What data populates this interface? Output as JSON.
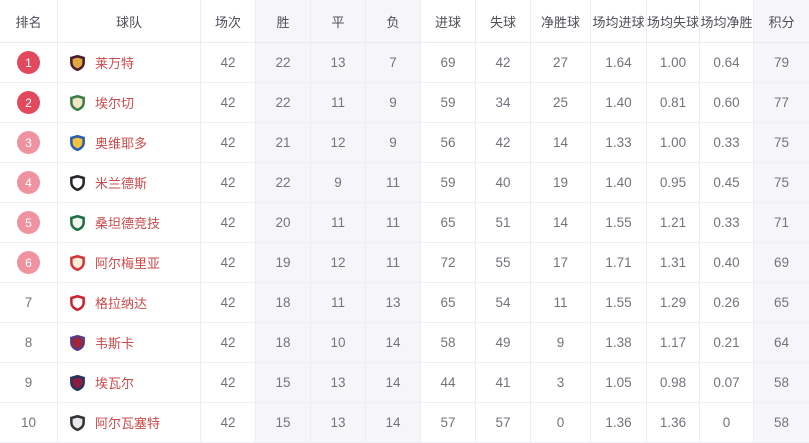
{
  "colors": {
    "rank_badge_top2": "#e2495c",
    "rank_badge_3_to_6": "#ef93a1",
    "team_name_link": "#c94b4b",
    "shaded_column_bg": "#f6f6fa",
    "header_text": "#4d4e57",
    "stat_text": "#73737d"
  },
  "table": {
    "columns": [
      {
        "key": "rank",
        "label": "排名",
        "shaded": false
      },
      {
        "key": "team",
        "label": "球队",
        "shaded": false
      },
      {
        "key": "played",
        "label": "场次",
        "shaded": false
      },
      {
        "key": "win",
        "label": "胜",
        "shaded": true
      },
      {
        "key": "draw",
        "label": "平",
        "shaded": true
      },
      {
        "key": "loss",
        "label": "负",
        "shaded": true
      },
      {
        "key": "goals_for",
        "label": "进球",
        "shaded": false
      },
      {
        "key": "goals_against",
        "label": "失球",
        "shaded": false
      },
      {
        "key": "goal_diff",
        "label": "净胜球",
        "shaded": false
      },
      {
        "key": "avg_goals_for",
        "label": "场均进球",
        "shaded": false
      },
      {
        "key": "avg_goals_against",
        "label": "场均失球",
        "shaded": false
      },
      {
        "key": "avg_goal_diff",
        "label": "场均净胜",
        "shaded": false
      },
      {
        "key": "points",
        "label": "积分",
        "shaded": true
      }
    ],
    "rows": [
      {
        "rank": "1",
        "rank_badge": "strong",
        "team": "莱万特",
        "badge": {
          "primary": "#4a1d2f",
          "secondary": "#e0a93f"
        },
        "played": "42",
        "win": "22",
        "draw": "13",
        "loss": "7",
        "goals_for": "69",
        "goals_against": "42",
        "goal_diff": "27",
        "avg_goals_for": "1.64",
        "avg_goals_against": "1.00",
        "avg_goal_diff": "0.64",
        "points": "79"
      },
      {
        "rank": "2",
        "rank_badge": "strong",
        "team": "埃尔切",
        "badge": {
          "primary": "#3a7d46",
          "secondary": "#f3e7c3"
        },
        "played": "42",
        "win": "22",
        "draw": "11",
        "loss": "9",
        "goals_for": "59",
        "goals_against": "34",
        "goal_diff": "25",
        "avg_goals_for": "1.40",
        "avg_goals_against": "0.81",
        "avg_goal_diff": "0.60",
        "points": "77"
      },
      {
        "rank": "3",
        "rank_badge": "light",
        "team": "奥维耶多",
        "badge": {
          "primary": "#2b5cad",
          "secondary": "#f2c43d"
        },
        "played": "42",
        "win": "21",
        "draw": "12",
        "loss": "9",
        "goals_for": "56",
        "goals_against": "42",
        "goal_diff": "14",
        "avg_goals_for": "1.33",
        "avg_goals_against": "1.00",
        "avg_goal_diff": "0.33",
        "points": "75"
      },
      {
        "rank": "4",
        "rank_badge": "light",
        "team": "米兰德斯",
        "badge": {
          "primary": "#26262c",
          "secondary": "#ffffff"
        },
        "played": "42",
        "win": "22",
        "draw": "9",
        "loss": "11",
        "goals_for": "59",
        "goals_against": "40",
        "goal_diff": "19",
        "avg_goals_for": "1.40",
        "avg_goals_against": "0.95",
        "avg_goal_diff": "0.45",
        "points": "75"
      },
      {
        "rank": "5",
        "rank_badge": "light",
        "team": "桑坦德竞技",
        "badge": {
          "primary": "#1f6f44",
          "secondary": "#f5f5f0"
        },
        "played": "42",
        "win": "20",
        "draw": "11",
        "loss": "11",
        "goals_for": "65",
        "goals_against": "51",
        "goal_diff": "14",
        "avg_goals_for": "1.55",
        "avg_goals_against": "1.21",
        "avg_goal_diff": "0.33",
        "points": "71"
      },
      {
        "rank": "6",
        "rank_badge": "light",
        "team": "阿尔梅里亚",
        "badge": {
          "primary": "#d2363b",
          "secondary": "#f6efdc"
        },
        "played": "42",
        "win": "19",
        "draw": "12",
        "loss": "11",
        "goals_for": "72",
        "goals_against": "55",
        "goal_diff": "17",
        "avg_goals_for": "1.71",
        "avg_goals_against": "1.31",
        "avg_goal_diff": "0.40",
        "points": "69"
      },
      {
        "rank": "7",
        "rank_badge": "none",
        "team": "格拉纳达",
        "badge": {
          "primary": "#c82434",
          "secondary": "#ffffff"
        },
        "played": "42",
        "win": "18",
        "draw": "11",
        "loss": "13",
        "goals_for": "65",
        "goals_against": "54",
        "goal_diff": "11",
        "avg_goals_for": "1.55",
        "avg_goals_against": "1.29",
        "avg_goal_diff": "0.26",
        "points": "65"
      },
      {
        "rank": "8",
        "rank_badge": "none",
        "team": "韦斯卡",
        "badge": {
          "primary": "#5a3a82",
          "secondary": "#a32638"
        },
        "played": "42",
        "win": "18",
        "draw": "10",
        "loss": "14",
        "goals_for": "58",
        "goals_against": "49",
        "goal_diff": "9",
        "avg_goals_for": "1.38",
        "avg_goals_against": "1.17",
        "avg_goal_diff": "0.21",
        "points": "64"
      },
      {
        "rank": "9",
        "rank_badge": "none",
        "team": "埃瓦尔",
        "badge": {
          "primary": "#24355e",
          "secondary": "#8c1d40"
        },
        "played": "42",
        "win": "15",
        "draw": "13",
        "loss": "14",
        "goals_for": "44",
        "goals_against": "41",
        "goal_diff": "3",
        "avg_goals_for": "1.05",
        "avg_goals_against": "0.98",
        "avg_goal_diff": "0.07",
        "points": "58"
      },
      {
        "rank": "10",
        "rank_badge": "none",
        "team": "阿尔瓦塞特",
        "badge": {
          "primary": "#33343a",
          "secondary": "#e8e8e8"
        },
        "played": "42",
        "win": "15",
        "draw": "13",
        "loss": "14",
        "goals_for": "57",
        "goals_against": "57",
        "goal_diff": "0",
        "avg_goals_for": "1.36",
        "avg_goals_against": "1.36",
        "avg_goal_diff": "0",
        "points": "58"
      }
    ]
  }
}
